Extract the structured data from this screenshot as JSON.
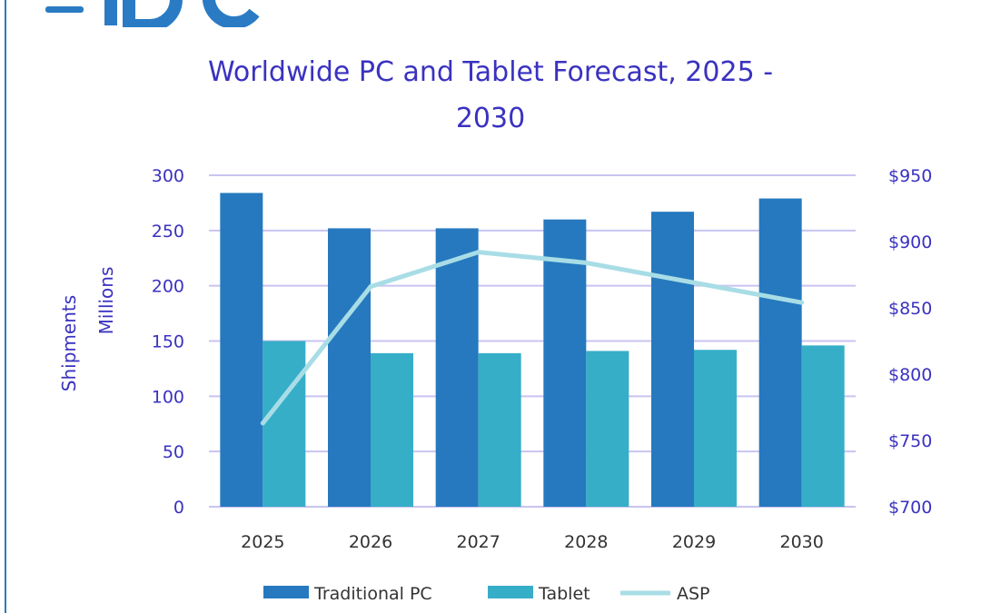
{
  "logo_text": "IDC",
  "chart_data": {
    "type": "bar",
    "title_line1": "Worldwide PC and Tablet Forecast, 2025 -",
    "title_line2": "2030",
    "categories": [
      "2025",
      "2026",
      "2027",
      "2028",
      "2029",
      "2030"
    ],
    "series": [
      {
        "name": "Traditional PC",
        "type": "bar",
        "axis": "left",
        "color": "#2679be",
        "values": [
          284,
          252,
          252,
          260,
          267,
          279
        ]
      },
      {
        "name": "Tablet",
        "type": "bar",
        "axis": "left",
        "color": "#36aec8",
        "values": [
          150,
          139,
          139,
          141,
          142,
          146
        ]
      },
      {
        "name": "ASP",
        "type": "line",
        "axis": "right",
        "color": "#a8dde6",
        "values": [
          763,
          866,
          892,
          884,
          869,
          854
        ]
      }
    ],
    "ylabel_line1": "Shipments",
    "ylabel_line2": "Millions",
    "ylim": [
      0,
      300
    ],
    "yticks": [
      "0",
      "50",
      "100",
      "150",
      "200",
      "250",
      "300"
    ],
    "y2lim": [
      700,
      950
    ],
    "y2ticks": [
      "$700",
      "$750",
      "$800",
      "$850",
      "$900",
      "$950"
    ],
    "grid": true,
    "legend_position": "bottom"
  }
}
